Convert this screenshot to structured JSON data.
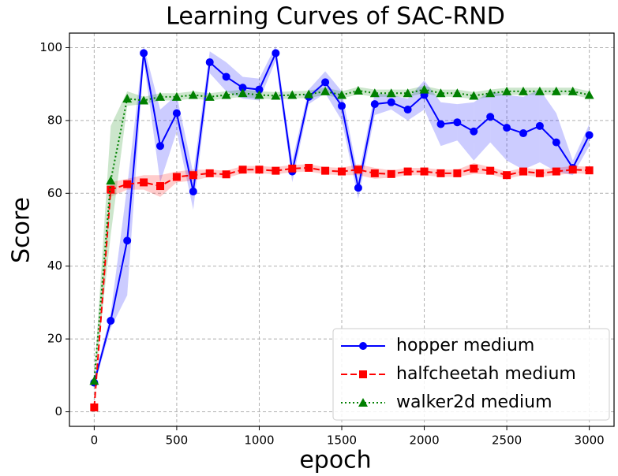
{
  "chart_data": {
    "type": "line",
    "title": "Learning Curves of SAC-RND",
    "xlabel": "epoch",
    "ylabel": "Score",
    "x": [
      0,
      100,
      200,
      300,
      400,
      500,
      600,
      700,
      800,
      900,
      1000,
      1100,
      1200,
      1300,
      1400,
      1500,
      1600,
      1700,
      1800,
      1900,
      2000,
      2100,
      2200,
      2300,
      2400,
      2500,
      2600,
      2700,
      2800,
      2900,
      3000
    ],
    "series": [
      {
        "name": "hopper medium",
        "color": "#0000ff",
        "marker": "circle",
        "linestyle": "solid",
        "values": [
          8,
          25,
          47,
          98.5,
          73,
          82,
          60.5,
          96,
          92,
          89,
          88.5,
          98.5,
          66,
          86.5,
          90.5,
          84,
          61.5,
          84.5,
          85,
          83,
          87,
          79,
          79.5,
          77,
          81,
          78,
          76.5,
          78.5,
          74,
          67,
          76
        ],
        "errors": [
          1,
          2,
          15,
          2,
          10,
          5,
          5,
          3,
          4,
          3,
          3,
          2,
          3,
          2,
          3,
          4,
          3,
          3,
          2,
          3,
          4,
          6,
          5,
          8,
          7,
          9,
          10,
          10,
          8,
          2,
          3
        ]
      },
      {
        "name": "halfcheetah medium",
        "color": "#ff0000",
        "marker": "square",
        "linestyle": "dashed",
        "values": [
          1.2,
          61,
          62.5,
          63,
          62,
          64.5,
          65,
          65.5,
          65.2,
          66.5,
          66.5,
          66.2,
          66.8,
          67,
          66.2,
          66,
          66.5,
          65.5,
          65.3,
          66,
          66,
          65.5,
          65.5,
          66.8,
          66.2,
          65,
          66,
          65.5,
          66,
          66.5,
          66.3
        ],
        "errors": [
          0.5,
          2,
          1.5,
          2,
          3,
          1.5,
          1.5,
          1,
          1,
          1,
          1,
          1,
          1,
          1,
          1,
          1,
          1.5,
          1.5,
          1,
          1,
          1,
          1,
          1,
          1.5,
          1,
          1,
          1,
          1,
          1,
          1,
          1
        ]
      },
      {
        "name": "walker2d medium",
        "color": "#008000",
        "marker": "triangle",
        "linestyle": "dotted",
        "values": [
          8.5,
          63.5,
          86,
          85.5,
          86.5,
          86.5,
          87,
          86.5,
          87,
          87.5,
          87,
          86.8,
          87,
          87.2,
          88,
          87,
          88.2,
          87.5,
          87.5,
          87.5,
          88.5,
          87.5,
          87.5,
          86.8,
          87.5,
          88,
          88,
          88,
          88,
          88,
          87
        ],
        "errors": [
          1,
          15,
          2,
          1,
          1,
          1,
          1,
          1,
          1,
          1,
          1,
          1,
          1,
          1,
          1,
          1,
          1,
          1,
          1,
          1,
          1,
          1,
          1,
          1,
          1,
          1,
          1,
          1,
          1,
          1,
          1
        ]
      }
    ],
    "xlim": [
      -150,
      3150
    ],
    "xticks": [
      0,
      500,
      1000,
      1500,
      2000,
      2500,
      3000
    ],
    "ylim": [
      -4,
      104
    ],
    "yticks": [
      0,
      20,
      40,
      60,
      80,
      100
    ],
    "grid": true,
    "legend": "lower right"
  }
}
